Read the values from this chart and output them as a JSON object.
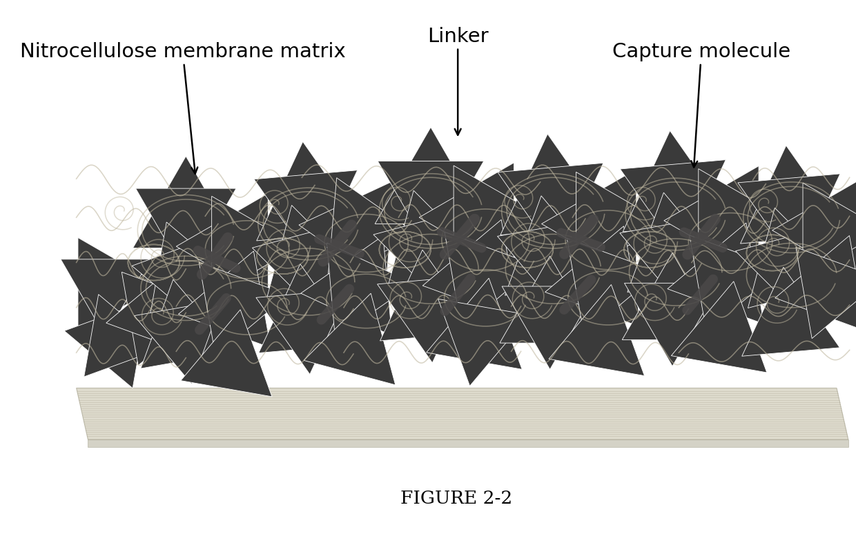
{
  "title": "FIGURE 2-2",
  "label_nitrocellulose": "Nitrocellulose membrane matrix",
  "label_linker": "Linker",
  "label_capture": "Capture molecule",
  "bg_color": "#ffffff",
  "triangle_color": "#3a3a3a",
  "triangle_edge": "#ffffff",
  "fiber_color": "#c0b8a0",
  "linker_color": "#4a4848",
  "membrane_color": "#d4d0bc",
  "membrane_line_color": "#b0ac98",
  "font_size_label": 21,
  "font_size_caption": 19,
  "figsize": [
    12.4,
    8.04
  ],
  "dpi": 100
}
